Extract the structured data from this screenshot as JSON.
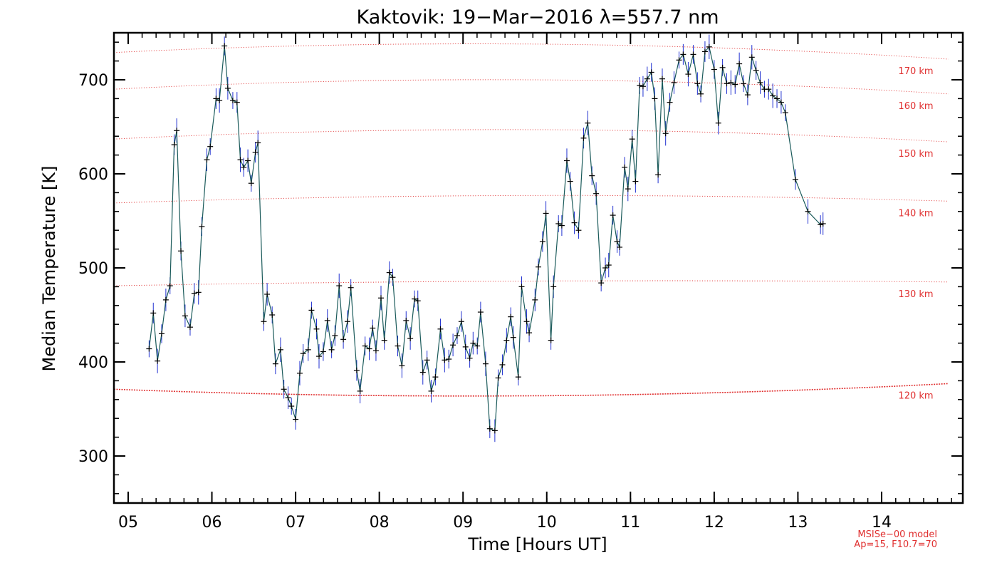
{
  "chart_data": {
    "type": "line",
    "title": "Kaktovik: 19−Mar−2016 λ=557.7 nm",
    "xlabel": "Time [Hours UT]",
    "ylabel": "Median Temperature [K]",
    "xlim": [
      4.83,
      14.97
    ],
    "ylim": [
      250,
      750
    ],
    "x_ticks": [
      5,
      6,
      7,
      8,
      9,
      10,
      11,
      12,
      13,
      14
    ],
    "x_tick_labels": [
      "05",
      "06",
      "07",
      "08",
      "09",
      "10",
      "11",
      "12",
      "13",
      "14"
    ],
    "y_ticks": [
      300,
      400,
      500,
      600,
      700
    ],
    "y_tick_labels": [
      "300",
      "400",
      "500",
      "600",
      "700"
    ],
    "colors": {
      "measurement_line": "#1a5a5a",
      "error_bars": "#2030d0",
      "model_lines": "#e03030",
      "markers": "#000000"
    },
    "model_note": [
      "MSISe−00 model",
      "Ap=15, F10.7=70"
    ],
    "model_curves": [
      {
        "label": "120 km",
        "start": 371,
        "mid": 364,
        "end": 377,
        "dense": true
      },
      {
        "label": "130 km",
        "start": 481,
        "mid": 486,
        "end": 485,
        "dense": false
      },
      {
        "label": "140 km",
        "start": 569,
        "mid": 577,
        "end": 571,
        "dense": false
      },
      {
        "label": "150 km",
        "start": 637,
        "mid": 647,
        "end": 634,
        "dense": false
      },
      {
        "label": "160 km",
        "start": 690,
        "mid": 700,
        "end": 685,
        "dense": false
      },
      {
        "label": "170 km",
        "start": 729,
        "mid": 738,
        "end": 722,
        "dense": false
      }
    ],
    "series": [
      {
        "values": [
          [
            5.25,
            414
          ],
          [
            5.3,
            452
          ],
          [
            5.35,
            401
          ],
          [
            5.4,
            430
          ],
          [
            5.45,
            466
          ],
          [
            5.5,
            481
          ],
          [
            5.55,
            631
          ],
          [
            5.58,
            646
          ],
          [
            5.63,
            518
          ],
          [
            5.68,
            449
          ],
          [
            5.74,
            437
          ],
          [
            5.79,
            473
          ],
          [
            5.84,
            474
          ],
          [
            5.88,
            544
          ],
          [
            5.94,
            615
          ],
          [
            5.98,
            629
          ],
          [
            6.05,
            680
          ],
          [
            6.09,
            678
          ],
          [
            6.15,
            736
          ],
          [
            6.19,
            691
          ],
          [
            6.25,
            678
          ],
          [
            6.3,
            676
          ],
          [
            6.34,
            615
          ],
          [
            6.38,
            607
          ],
          [
            6.43,
            614
          ],
          [
            6.47,
            590
          ],
          [
            6.52,
            623
          ],
          [
            6.55,
            633
          ],
          [
            6.62,
            443
          ],
          [
            6.66,
            472
          ],
          [
            6.72,
            450
          ],
          [
            6.76,
            398
          ],
          [
            6.82,
            413
          ],
          [
            6.86,
            371
          ],
          [
            6.91,
            362
          ],
          [
            6.95,
            353
          ],
          [
            7.0,
            339
          ],
          [
            7.05,
            388
          ],
          [
            7.09,
            409
          ],
          [
            7.15,
            413
          ],
          [
            7.19,
            455
          ],
          [
            7.25,
            435
          ],
          [
            7.28,
            406
          ],
          [
            7.33,
            411
          ],
          [
            7.38,
            444
          ],
          [
            7.43,
            413
          ],
          [
            7.47,
            428
          ],
          [
            7.52,
            481
          ],
          [
            7.57,
            424
          ],
          [
            7.62,
            443
          ],
          [
            7.66,
            479
          ],
          [
            7.73,
            391
          ],
          [
            7.77,
            369
          ],
          [
            7.83,
            417
          ],
          [
            7.88,
            414
          ],
          [
            7.92,
            436
          ],
          [
            7.96,
            412
          ],
          [
            8.02,
            468
          ],
          [
            8.06,
            423
          ],
          [
            8.12,
            495
          ],
          [
            8.16,
            490
          ],
          [
            8.22,
            417
          ],
          [
            8.27,
            396
          ],
          [
            8.32,
            444
          ],
          [
            8.37,
            425
          ],
          [
            8.42,
            467
          ],
          [
            8.46,
            465
          ],
          [
            8.52,
            389
          ],
          [
            8.57,
            402
          ],
          [
            8.62,
            369
          ],
          [
            8.67,
            384
          ],
          [
            8.73,
            435
          ],
          [
            8.78,
            402
          ],
          [
            8.83,
            403
          ],
          [
            8.88,
            418
          ],
          [
            8.93,
            428
          ],
          [
            8.98,
            443
          ],
          [
            9.03,
            416
          ],
          [
            9.08,
            404
          ],
          [
            9.12,
            420
          ],
          [
            9.17,
            417
          ],
          [
            9.21,
            453
          ],
          [
            9.27,
            398
          ],
          [
            9.32,
            329
          ],
          [
            9.38,
            327
          ],
          [
            9.42,
            383
          ],
          [
            9.47,
            397
          ],
          [
            9.52,
            423
          ],
          [
            9.57,
            448
          ],
          [
            9.6,
            426
          ],
          [
            9.66,
            384
          ],
          [
            9.7,
            480
          ],
          [
            9.76,
            443
          ],
          [
            9.79,
            431
          ],
          [
            9.86,
            466
          ],
          [
            9.9,
            501
          ],
          [
            9.95,
            528
          ],
          [
            9.99,
            558
          ],
          [
            10.05,
            423
          ],
          [
            10.08,
            480
          ],
          [
            10.14,
            547
          ],
          [
            10.18,
            545
          ],
          [
            10.24,
            614
          ],
          [
            10.28,
            592
          ],
          [
            10.33,
            548
          ],
          [
            10.38,
            540
          ],
          [
            10.44,
            638
          ],
          [
            10.49,
            654
          ],
          [
            10.54,
            598
          ],
          [
            10.59,
            579
          ],
          [
            10.65,
            484
          ],
          [
            10.7,
            500
          ],
          [
            10.74,
            503
          ],
          [
            10.79,
            556
          ],
          [
            10.84,
            528
          ],
          [
            10.87,
            522
          ],
          [
            10.93,
            607
          ],
          [
            10.97,
            584
          ],
          [
            11.02,
            637
          ],
          [
            11.06,
            592
          ],
          [
            11.11,
            694
          ],
          [
            11.15,
            693
          ],
          [
            11.2,
            701
          ],
          [
            11.25,
            708
          ],
          [
            11.29,
            680
          ],
          [
            11.33,
            599
          ],
          [
            11.38,
            701
          ],
          [
            11.42,
            643
          ],
          [
            11.47,
            676
          ],
          [
            11.52,
            697
          ],
          [
            11.58,
            721
          ],
          [
            11.63,
            727
          ],
          [
            11.69,
            706
          ],
          [
            11.75,
            727
          ],
          [
            11.8,
            696
          ],
          [
            11.84,
            685
          ],
          [
            11.89,
            730
          ],
          [
            11.94,
            735
          ],
          [
            12.0,
            711
          ],
          [
            12.05,
            654
          ],
          [
            12.1,
            713
          ],
          [
            12.15,
            696
          ],
          [
            12.2,
            697
          ],
          [
            12.25,
            695
          ],
          [
            12.3,
            717
          ],
          [
            12.35,
            696
          ],
          [
            12.4,
            684
          ],
          [
            12.45,
            724
          ],
          [
            12.5,
            710
          ],
          [
            12.55,
            697
          ],
          [
            12.6,
            690
          ],
          [
            12.65,
            690
          ],
          [
            12.7,
            683
          ],
          [
            12.75,
            680
          ],
          [
            12.8,
            676
          ],
          [
            12.85,
            665
          ],
          [
            12.97,
            594
          ],
          [
            13.12,
            560
          ],
          [
            13.27,
            546
          ],
          [
            13.3,
            547
          ]
        ]
      }
    ]
  }
}
